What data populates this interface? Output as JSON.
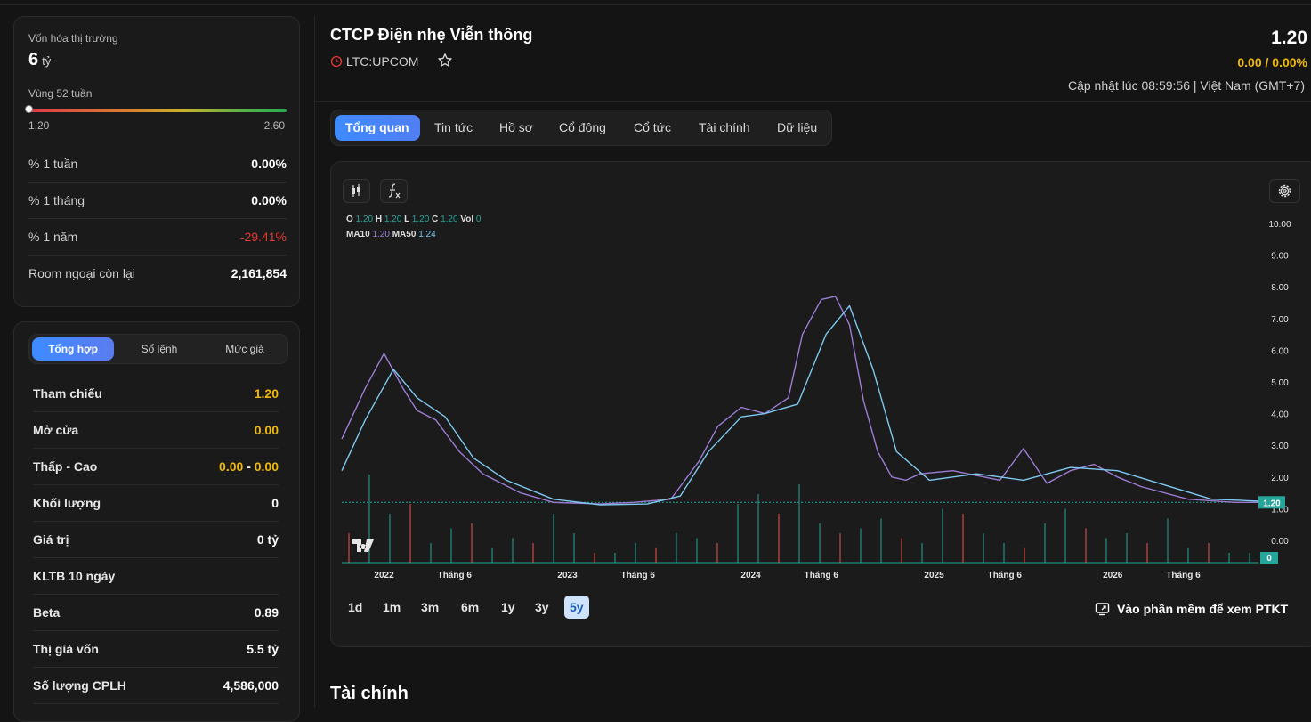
{
  "market": {
    "cap_label": "Vốn hóa thị trường",
    "cap_value": "6",
    "cap_unit": "tỷ",
    "range_label": "Vùng 52 tuần",
    "range_low": "1.20",
    "range_high": "2.60",
    "range_position": 0.0,
    "stats": [
      {
        "label": "% 1 tuần",
        "value": "0.00%"
      },
      {
        "label": "% 1 tháng",
        "value": "0.00%"
      },
      {
        "label": "% 1 năm",
        "value": "-29.41%"
      },
      {
        "label": "Room ngoại còn lại",
        "value": "2,161,854"
      }
    ]
  },
  "trade": {
    "tabs": [
      "Tổng hợp",
      "Sổ lệnh",
      "Mức giá"
    ],
    "rows": [
      {
        "label": "Tham chiếu",
        "value": "1.20"
      },
      {
        "label": "Mở cửa",
        "value": "0.00"
      },
      {
        "label": "Thấp - Cao",
        "low": "0.00",
        "sep": "-",
        "high": "0.00"
      },
      {
        "label": "Khối lượng",
        "value": "0"
      },
      {
        "label": "Giá trị",
        "value": "0 tỷ"
      },
      {
        "label": "KLTB 10 ngày",
        "value": ""
      },
      {
        "label": "Beta",
        "value": "0.89"
      },
      {
        "label": "Thị giá vốn",
        "value": "5.5 tỷ"
      },
      {
        "label": "Số lượng CPLH",
        "value": "4,586,000"
      }
    ]
  },
  "header": {
    "title": "CTCP Điện nhẹ Viễn thông",
    "ticker": "LTC:UPCOM",
    "price": "1.20",
    "change": "0.00 / 0.00%",
    "updated": "Cập nhật lúc 08:59:56 | Việt Nam (GMT+7)"
  },
  "tabs": [
    "Tổng quan",
    "Tin tức",
    "Hồ sơ",
    "Cổ đông",
    "Cổ tức",
    "Tài chính",
    "Dữ liệu"
  ],
  "legend": {
    "o": "O",
    "o_v": "1.20",
    "h": "H",
    "h_v": "1.20",
    "l": "L",
    "l_v": "1.20",
    "c": "C",
    "c_v": "1.20",
    "vol": "Vol",
    "vol_v": "0",
    "ma10": "MA10",
    "ma10_v": "1.20",
    "ma50": "MA50",
    "ma50_v": "1.24"
  },
  "periods": [
    "1d",
    "1m",
    "3m",
    "6m",
    "1y",
    "3y",
    "5y"
  ],
  "active_period": "5y",
  "ptkt_label": "Vào phần mềm để xem PTKT",
  "section_title": "Tài chính",
  "colors": {
    "accent": "#3d8bff",
    "yellow": "#f0b90b",
    "up": "#26a69a",
    "down": "#ef5350",
    "ma10": "#9c7cd4",
    "ma50": "#7ec8f0"
  },
  "chart_data": {
    "type": "line",
    "y_ticks": [
      "10.00",
      "9.00",
      "8.00",
      "7.00",
      "6.00",
      "5.00",
      "4.00",
      "3.00",
      "2.00",
      "1.00",
      "0.00"
    ],
    "x_ticks": [
      "2022",
      "Tháng 6",
      "2023",
      "Tháng 6",
      "2024",
      "Tháng 6",
      "2025",
      "Tháng 6",
      "2026",
      "Tháng 6"
    ],
    "x_tick_t": [
      0.09,
      0.24,
      0.48,
      0.63,
      0.87,
      1.02,
      1.26,
      1.41,
      1.64,
      1.79
    ],
    "ylim": [
      0,
      10
    ],
    "last_price": "1.20",
    "last_volume": "0",
    "series": [
      {
        "name": "MA10",
        "x": [
          0,
          0.05,
          0.09,
          0.13,
          0.16,
          0.2,
          0.25,
          0.3,
          0.38,
          0.45,
          0.55,
          0.62,
          0.7,
          0.76,
          0.8,
          0.85,
          0.9,
          0.95,
          0.98,
          1.02,
          1.05,
          1.08,
          1.11,
          1.14,
          1.17,
          1.2,
          1.23,
          1.3,
          1.4,
          1.45,
          1.5,
          1.55,
          1.6,
          1.65,
          1.7,
          1.8,
          1.9,
          1.95
        ],
        "y": [
          3.2,
          4.8,
          5.9,
          4.8,
          4.1,
          3.8,
          2.8,
          2.1,
          1.5,
          1.2,
          1.15,
          1.2,
          1.3,
          2.5,
          3.6,
          4.2,
          4.0,
          4.5,
          6.5,
          7.6,
          7.7,
          6.8,
          4.4,
          2.8,
          2.0,
          1.9,
          2.1,
          2.2,
          1.9,
          2.9,
          1.8,
          2.2,
          2.4,
          2.0,
          1.7,
          1.3,
          1.2,
          1.2
        ]
      },
      {
        "name": "MA50",
        "x": [
          0,
          0.05,
          0.11,
          0.16,
          0.22,
          0.28,
          0.35,
          0.45,
          0.55,
          0.65,
          0.72,
          0.78,
          0.85,
          0.9,
          0.97,
          1.03,
          1.08,
          1.13,
          1.18,
          1.25,
          1.35,
          1.45,
          1.55,
          1.65,
          1.75,
          1.85,
          1.95
        ],
        "y": [
          2.2,
          3.8,
          5.4,
          4.5,
          3.9,
          2.6,
          1.9,
          1.3,
          1.12,
          1.15,
          1.4,
          2.8,
          3.9,
          4.0,
          4.3,
          6.5,
          7.4,
          5.4,
          2.8,
          1.9,
          2.1,
          1.9,
          2.3,
          2.2,
          1.75,
          1.3,
          1.24
        ]
      }
    ]
  }
}
